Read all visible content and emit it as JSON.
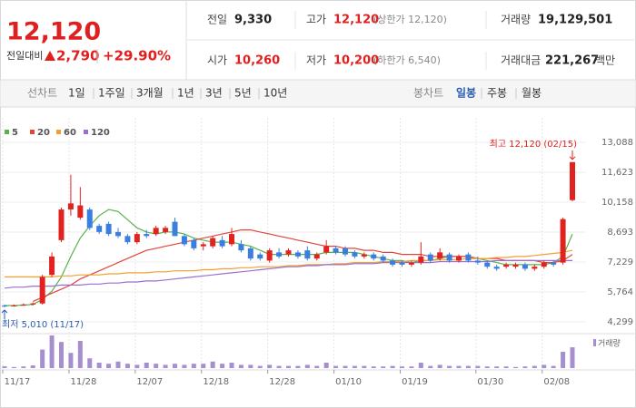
{
  "header": {
    "price": "12,120",
    "change_label": "전일대비",
    "change": "2,790",
    "change_rate": "+29.90%",
    "fields": [
      {
        "label": "전일",
        "value": "9,330"
      },
      {
        "label": "고가",
        "value": "12,120",
        "note": "(상한가 12,120)"
      },
      {
        "label": "거래량",
        "value": "19,129,501"
      },
      {
        "label": "시가",
        "value": "10,260"
      },
      {
        "label": "저가",
        "value": "10,200",
        "note": "(하한가 6,540)"
      },
      {
        "label": "거래대금",
        "value": "221,267",
        "unit": "백만"
      }
    ]
  },
  "tabs": {
    "line_label": "선차트",
    "line_periods": [
      "1일",
      "1주일",
      "3개월",
      "1년",
      "3년",
      "5년",
      "10년"
    ],
    "candle_label": "봉차트",
    "candle_periods": [
      "일봉",
      "주봉",
      "월봉"
    ],
    "selected": "일봉"
  },
  "chart_data": {
    "type": "candlestick",
    "categories": [
      "11/17",
      null,
      null,
      null,
      null,
      null,
      null,
      "11/28",
      null,
      null,
      null,
      null,
      null,
      null,
      "12/07",
      null,
      null,
      null,
      null,
      null,
      null,
      "12/18",
      null,
      null,
      null,
      null,
      null,
      null,
      "12/28",
      null,
      null,
      null,
      null,
      null,
      null,
      "01/10",
      null,
      null,
      null,
      null,
      null,
      null,
      "01/19",
      null,
      null,
      null,
      null,
      null,
      null,
      null,
      "01/30",
      null,
      null,
      null,
      null,
      null,
      null,
      "02/08",
      null,
      null,
      null
    ],
    "open": [
      5100,
      5080,
      5100,
      5150,
      5200,
      6600,
      8300,
      9800,
      9400,
      9800,
      9000,
      9100,
      8700,
      8500,
      8200,
      8600,
      8600,
      8700,
      9200,
      8500,
      8300,
      8000,
      8000,
      8300,
      8100,
      8100,
      7900,
      7600,
      7300,
      7700,
      7600,
      7700,
      7800,
      7400,
      7700,
      7900,
      7900,
      7700,
      7500,
      7600,
      7500,
      7300,
      7200,
      7100,
      7200,
      7600,
      7400,
      7600,
      7300,
      7600,
      7300,
      7200,
      7000,
      7000,
      7000,
      7100,
      6900,
      7000,
      7200,
      7200,
      10260
    ],
    "high": [
      5150,
      5150,
      5200,
      5250,
      6600,
      7700,
      9900,
      11500,
      10900,
      9900,
      9100,
      9200,
      8900,
      8600,
      8700,
      8800,
      9000,
      9000,
      9400,
      8600,
      8400,
      8200,
      8500,
      8500,
      8900,
      8300,
      8000,
      7700,
      7900,
      7900,
      7900,
      7800,
      8000,
      7700,
      8300,
      8000,
      8000,
      7800,
      7700,
      7700,
      7600,
      7400,
      7300,
      7300,
      8200,
      7700,
      7900,
      7700,
      7600,
      7700,
      7500,
      7300,
      7100,
      7200,
      7200,
      7200,
      7100,
      7300,
      7300,
      9400,
      12120
    ],
    "low": [
      5010,
      5050,
      5080,
      5100,
      5150,
      6500,
      8200,
      9500,
      9300,
      8800,
      8600,
      8500,
      8400,
      8100,
      8100,
      8400,
      8500,
      8600,
      8500,
      8000,
      7800,
      7800,
      7900,
      7900,
      8000,
      7700,
      7300,
      7300,
      7200,
      7400,
      7500,
      7400,
      7300,
      7300,
      7600,
      7600,
      7500,
      7400,
      7400,
      7300,
      7200,
      7000,
      7000,
      7000,
      7100,
      7200,
      7300,
      7200,
      7200,
      7200,
      7100,
      6900,
      6800,
      6900,
      6900,
      6800,
      6800,
      6900,
      7000,
      7100,
      10200
    ],
    "close": [
      5080,
      5100,
      5150,
      5200,
      6500,
      7500,
      9800,
      10100,
      10000,
      8900,
      8700,
      8600,
      8500,
      8200,
      8600,
      8500,
      8900,
      8900,
      8500,
      8100,
      7900,
      8100,
      8400,
      8000,
      8600,
      7800,
      7400,
      7400,
      7800,
      7500,
      7800,
      7500,
      7400,
      7600,
      8000,
      7700,
      7600,
      7500,
      7600,
      7400,
      7300,
      7100,
      7100,
      7200,
      7500,
      7300,
      7700,
      7300,
      7500,
      7300,
      7200,
      7000,
      6900,
      7100,
      7100,
      6900,
      7000,
      7200,
      7100,
      9330,
      12120
    ],
    "up_color": "#e1221f",
    "down_color": "#3a7ee0",
    "moving_averages": [
      {
        "name": "5",
        "color": "#58b44a",
        "values": [
          5100,
          5100,
          5120,
          5150,
          5400,
          5800,
          6500,
          7500,
          8400,
          9000,
          9500,
          9800,
          9700,
          9300,
          8900,
          8700,
          8600,
          8700,
          8700,
          8600,
          8400,
          8300,
          8200,
          8200,
          8200,
          8100,
          8000,
          7800,
          7600,
          7600,
          7600,
          7600,
          7600,
          7600,
          7700,
          7700,
          7700,
          7700,
          7600,
          7500,
          7400,
          7300,
          7300,
          7200,
          7300,
          7300,
          7400,
          7500,
          7500,
          7500,
          7400,
          7300,
          7200,
          7100,
          7100,
          7100,
          7100,
          7100,
          7200,
          7500,
          8600
        ]
      },
      {
        "name": "20",
        "color": "#e0463c",
        "values": [
          null,
          null,
          null,
          5300,
          5500,
          5700,
          5900,
          6100,
          6400,
          6600,
          6800,
          7000,
          7200,
          7400,
          7600,
          7800,
          7900,
          8000,
          8100,
          8200,
          8300,
          8400,
          8500,
          8600,
          8700,
          8800,
          8800,
          8700,
          8600,
          8500,
          8400,
          8300,
          8200,
          8100,
          8000,
          8000,
          7900,
          7900,
          7800,
          7800,
          7700,
          7700,
          7600,
          7600,
          7600,
          7500,
          7500,
          7500,
          7500,
          7500,
          7400,
          7400,
          7400,
          7300,
          7300,
          7300,
          7300,
          7200,
          7200,
          7300,
          7600
        ]
      },
      {
        "name": "60",
        "color": "#f0a030",
        "values": [
          6500,
          6500,
          6500,
          6500,
          6500,
          6500,
          6550,
          6550,
          6600,
          6600,
          6600,
          6650,
          6650,
          6700,
          6700,
          6700,
          6750,
          6750,
          6800,
          6800,
          6800,
          6850,
          6850,
          6900,
          6900,
          6950,
          6950,
          7000,
          7000,
          7000,
          7050,
          7050,
          7100,
          7100,
          7100,
          7150,
          7150,
          7200,
          7200,
          7200,
          7250,
          7250,
          7250,
          7300,
          7300,
          7300,
          7350,
          7350,
          7350,
          7400,
          7400,
          7400,
          7450,
          7450,
          7500,
          7500,
          7550,
          7600,
          7650,
          7700,
          7800
        ]
      },
      {
        "name": "120",
        "color": "#9a6fd0",
        "values": [
          5950,
          6000,
          6000,
          6050,
          6050,
          6050,
          6100,
          6100,
          6100,
          6150,
          6150,
          6200,
          6200,
          6250,
          6250,
          6300,
          6300,
          6350,
          6400,
          6450,
          6500,
          6550,
          6600,
          6650,
          6700,
          6750,
          6800,
          6850,
          6900,
          6950,
          7000,
          7000,
          7050,
          7050,
          7100,
          7100,
          7100,
          7150,
          7150,
          7150,
          7200,
          7200,
          7200,
          7200,
          7200,
          7200,
          7250,
          7250,
          7250,
          7250,
          7250,
          7250,
          7300,
          7300,
          7300,
          7300,
          7300,
          7300,
          7300,
          7300,
          7300
        ]
      }
    ],
    "volume_name": "거래량",
    "volume_color": "#a58fcf",
    "volume": [
      1700000,
      1000000,
      1500000,
      2500000,
      17000000,
      30000000,
      24000000,
      14000000,
      25000000,
      9000000,
      5000000,
      4000000,
      6000000,
      4000000,
      3000000,
      5000000,
      4000000,
      3000000,
      4000000,
      3000000,
      4000000,
      4000000,
      6000000,
      4000000,
      5000000,
      3000000,
      3000000,
      2000000,
      3000000,
      2000000,
      2000000,
      2000000,
      3000000,
      2000000,
      5000000,
      2000000,
      2000000,
      2000000,
      2000000,
      1500000,
      1500000,
      2000000,
      1500000,
      1500000,
      5000000,
      2000000,
      3000000,
      2000000,
      2000000,
      2000000,
      2000000,
      1500000,
      1500000,
      1500000,
      1000000,
      1500000,
      2000000,
      3000000,
      2000000,
      15000000,
      19129501
    ],
    "ylim": [
      4299,
      13088
    ],
    "yticks": [
      {
        "value": 4299,
        "label": "4,299"
      },
      {
        "value": 5764,
        "label": "5,764"
      },
      {
        "value": 7229,
        "label": "7,229"
      },
      {
        "value": 8693,
        "label": "8,693"
      },
      {
        "value": 10158,
        "label": "10,158"
      },
      {
        "value": 11623,
        "label": "11,623"
      },
      {
        "value": 13088,
        "label": "13,088"
      }
    ],
    "grid": true,
    "annotations": {
      "high": "최고 12,120 (02/15)",
      "low": "최저 5,010 (11/17)"
    }
  }
}
